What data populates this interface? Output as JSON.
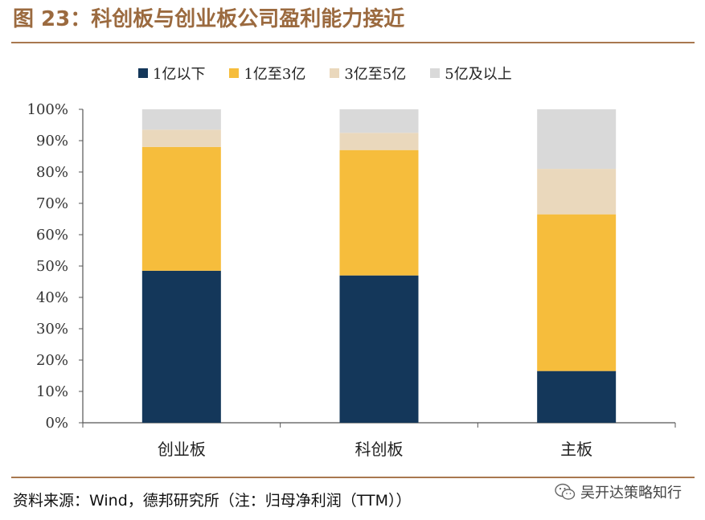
{
  "title": "图 23：科创板与创业板公司盈利能力接近",
  "source": "资料来源：Wind，德邦研究所（注：归母净利润（TTM））",
  "watermark": "吴开达策略知行",
  "colors": {
    "accent": "#a8784f",
    "title": "#9b6a3f",
    "series": [
      "#14375a",
      "#f6bd3c",
      "#ead8bc",
      "#d9d9d9"
    ]
  },
  "chart_data": {
    "type": "bar",
    "stacked": true,
    "categories": [
      "创业板",
      "科创板",
      "主板"
    ],
    "series": [
      {
        "name": "1亿以下",
        "values": [
          48.5,
          47,
          16.5
        ]
      },
      {
        "name": "1亿至3亿",
        "values": [
          39.5,
          40,
          50
        ]
      },
      {
        "name": "3亿至5亿",
        "values": [
          5.5,
          5.5,
          14.5
        ]
      },
      {
        "name": "5亿及以上",
        "values": [
          6.5,
          7.5,
          19
        ]
      }
    ],
    "ylim": [
      0,
      100
    ],
    "yticks": [
      "0%",
      "10%",
      "20%",
      "30%",
      "40%",
      "50%",
      "60%",
      "70%",
      "80%",
      "90%",
      "100%"
    ],
    "legend_position": "top"
  }
}
